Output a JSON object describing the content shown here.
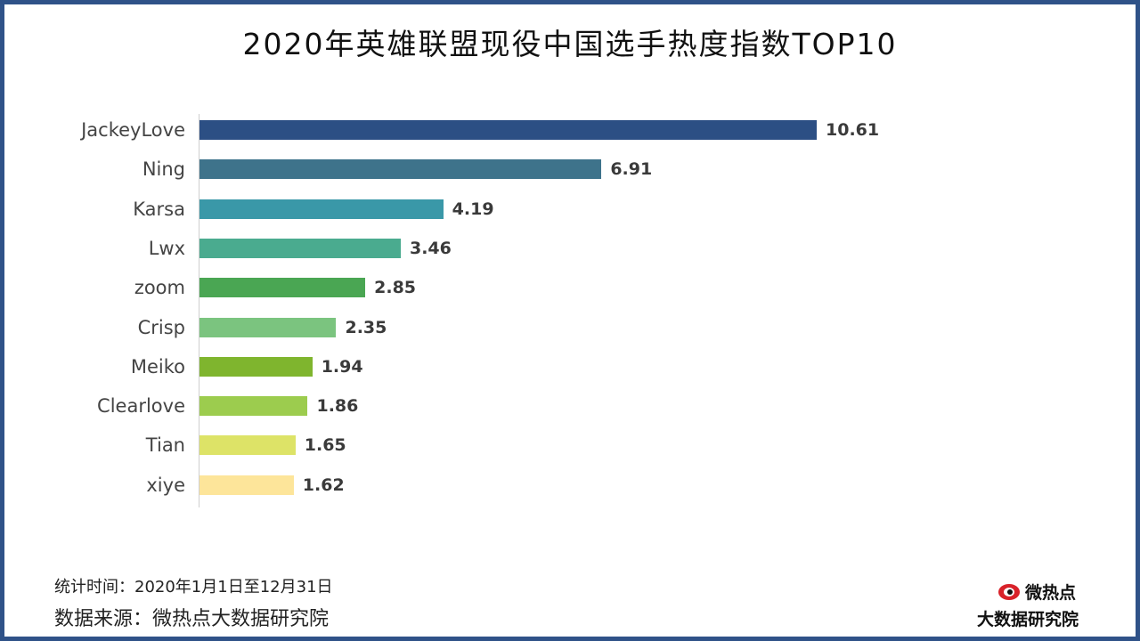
{
  "title": "2020年英雄联盟现役中国选手热度指数TOP10",
  "footer": {
    "time": "统计时间：2020年1月1日至12月31日",
    "source": "数据来源：微热点大数据研究院"
  },
  "logo": {
    "icon": "weibo-eye-icon",
    "top_text": "微热点",
    "bottom_text": "大数据研究院"
  },
  "chart_data": {
    "type": "bar",
    "orientation": "horizontal",
    "title": "2020年英雄联盟现役中国选手热度指数TOP10",
    "categories": [
      "JackeyLove",
      "Ning",
      "Karsa",
      "Lwx",
      "zoom",
      "Crisp",
      "Meiko",
      "Clearlove",
      "Tian",
      "xiye"
    ],
    "values": [
      10.61,
      6.91,
      4.19,
      3.46,
      2.85,
      2.35,
      1.94,
      1.86,
      1.65,
      1.62
    ],
    "value_labels": [
      "10.61",
      "6.91",
      "4.19",
      "3.46",
      "2.85",
      "2.35",
      "1.94",
      "1.86",
      "1.65",
      "1.62"
    ],
    "xlim": [
      0,
      11.4
    ],
    "grid": false,
    "legend": "none",
    "colors": [
      "#2c4f84",
      "#3e738b",
      "#3a98a8",
      "#4aab8f",
      "#4aa653",
      "#7bc47f",
      "#7fb52e",
      "#9ccc4e",
      "#dde367",
      "#fde59a"
    ]
  }
}
